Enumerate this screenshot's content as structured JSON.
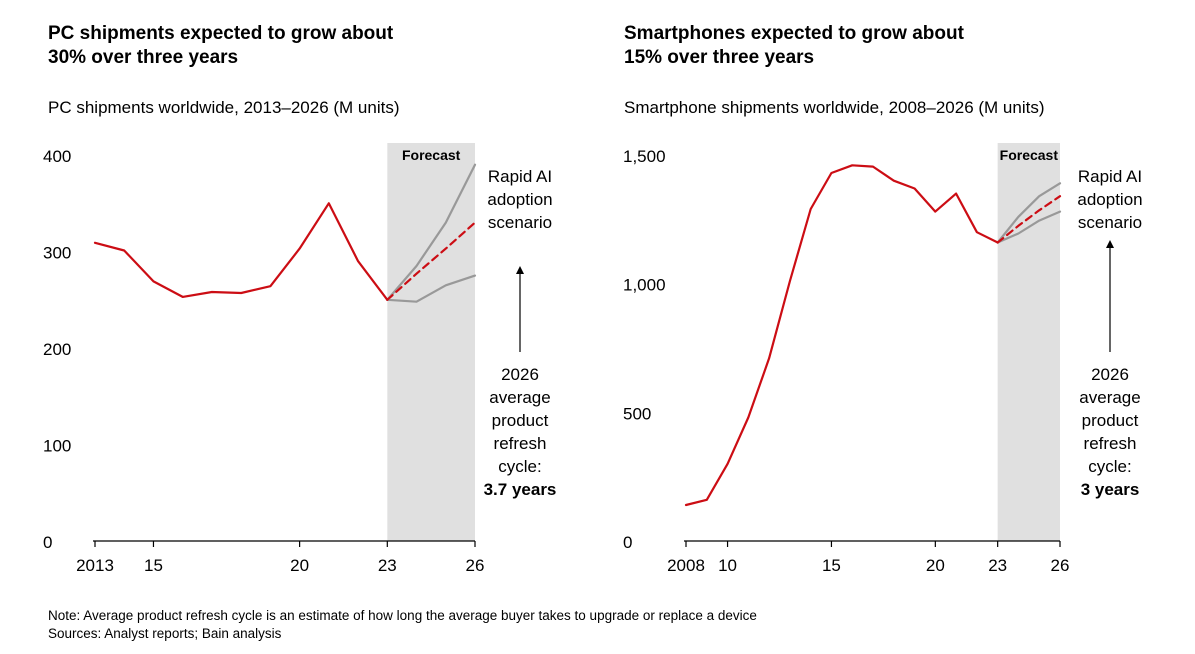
{
  "charts": [
    {
      "title_line1": "PC shipments expected to grow about",
      "title_line2": "30% over three years",
      "subtitle": "PC shipments worldwide, 2013–2026 (M units)",
      "forecast_label": "Forecast",
      "scenario_label": [
        "Rapid AI",
        "adoption",
        "scenario"
      ],
      "refresh_label": [
        "2026",
        "average",
        "product",
        "refresh",
        "cycle:"
      ],
      "refresh_value": "3.7 years"
    },
    {
      "title_line1": "Smartphones expected to grow about",
      "title_line2": "15% over three years",
      "subtitle": "Smartphone shipments worldwide, 2008–2026 (M units)",
      "forecast_label": "Forecast",
      "scenario_label": [
        "Rapid AI",
        "adoption",
        "scenario"
      ],
      "refresh_label": [
        "2026",
        "average",
        "product",
        "refresh",
        "cycle:"
      ],
      "refresh_value": "3 years"
    }
  ],
  "footer": {
    "note": "Note: Average product refresh cycle is an estimate of how long the average buyer takes to upgrade or replace a device",
    "sources": "Sources: Analyst reports; Bain analysis"
  },
  "colors": {
    "actual": "#cc0d14",
    "scenario": "#999999",
    "forecast_band": "#e0e0e0",
    "axis": "#000000"
  },
  "chart_data": [
    {
      "type": "line",
      "title": "PC shipments expected to grow about 30% over three years",
      "ylabel": "PC shipments worldwide, 2013–2026 (M units)",
      "xlim": [
        2013,
        2026
      ],
      "ylim": [
        0,
        400
      ],
      "y_ticks": [
        0,
        100,
        200,
        300,
        400
      ],
      "x_ticks": [
        2013,
        2015,
        2020,
        2023,
        2026
      ],
      "x_tick_labels": [
        "2013",
        "15",
        "20",
        "23",
        "26"
      ],
      "forecast_range": [
        2023,
        2026
      ],
      "series": [
        {
          "style": "actual",
          "x": [
            2013,
            2014,
            2015,
            2016,
            2017,
            2018,
            2019,
            2020,
            2021,
            2022,
            2023
          ],
          "values": [
            309,
            301,
            269,
            253,
            258,
            257,
            264,
            303,
            350,
            290,
            250
          ]
        },
        {
          "style": "forecast_high",
          "x": [
            2023,
            2024,
            2025,
            2026
          ],
          "values": [
            250,
            285,
            330,
            390
          ]
        },
        {
          "style": "forecast_rapid_ai",
          "x": [
            2023,
            2024,
            2025,
            2026
          ],
          "values": [
            250,
            277,
            303,
            330
          ]
        },
        {
          "style": "forecast_low",
          "x": [
            2023,
            2024,
            2025,
            2026
          ],
          "values": [
            250,
            248,
            265,
            275
          ]
        }
      ]
    },
    {
      "type": "line",
      "title": "Smartphones expected to grow about 15% over three years",
      "ylabel": "Smartphone shipments worldwide, 2008–2026 (M units)",
      "xlim": [
        2008,
        2026
      ],
      "ylim": [
        0,
        1500
      ],
      "y_ticks": [
        0,
        500,
        1000,
        1500
      ],
      "y_tick_labels": [
        "0",
        "500",
        "1,000",
        "1,500"
      ],
      "x_ticks": [
        2008,
        2010,
        2015,
        2020,
        2023,
        2026
      ],
      "x_tick_labels": [
        "2008",
        "10",
        "15",
        "20",
        "23",
        "26"
      ],
      "forecast_range": [
        2023,
        2026
      ],
      "series": [
        {
          "style": "actual",
          "x": [
            2008,
            2009,
            2010,
            2011,
            2012,
            2013,
            2014,
            2015,
            2016,
            2017,
            2018,
            2019,
            2020,
            2021,
            2022,
            2023
          ],
          "values": [
            140,
            160,
            300,
            480,
            710,
            1010,
            1290,
            1430,
            1460,
            1455,
            1400,
            1370,
            1280,
            1350,
            1200,
            1160
          ]
        },
        {
          "style": "forecast_high",
          "x": [
            2023,
            2024,
            2025,
            2026
          ],
          "values": [
            1160,
            1260,
            1340,
            1390
          ]
        },
        {
          "style": "forecast_rapid_ai",
          "x": [
            2023,
            2024,
            2025,
            2026
          ],
          "values": [
            1160,
            1225,
            1285,
            1340
          ]
        },
        {
          "style": "forecast_low",
          "x": [
            2023,
            2024,
            2025,
            2026
          ],
          "values": [
            1160,
            1195,
            1245,
            1280
          ]
        }
      ]
    }
  ]
}
